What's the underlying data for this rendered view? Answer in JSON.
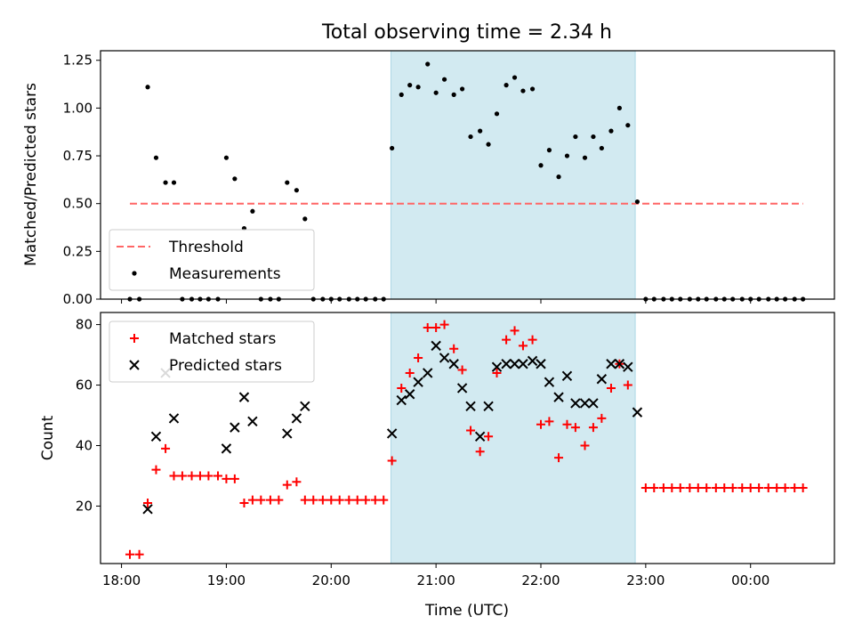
{
  "chart_data": {
    "title": "Total observing time = 2.34 h",
    "xlabel": "Time (UTC)",
    "x_unit": "hours (UTC), values >= 24 fall after midnight",
    "xlim": [
      17.8,
      24.8
    ],
    "xticks": [
      18,
      19,
      20,
      21,
      22,
      23,
      24
    ],
    "xtick_labels": [
      "18:00",
      "19:00",
      "20:00",
      "21:00",
      "22:00",
      "23:00",
      "00:00"
    ],
    "highlight_span": [
      20.57,
      22.9
    ],
    "highlight_color": "#add8e6",
    "panels": [
      {
        "type": "scatter",
        "ylabel": "Matched/Predicted stars",
        "ylim": [
          0,
          1.3
        ],
        "yticks": [
          0.0,
          0.25,
          0.5,
          0.75,
          1.0,
          1.25
        ],
        "ytick_labels": [
          "0.00",
          "0.25",
          "0.50",
          "0.75",
          "1.00",
          "1.25"
        ],
        "legend_position": "bottom-left",
        "threshold": {
          "name": "Threshold",
          "y": 0.5,
          "x_range": [
            18.08,
            24.5
          ],
          "color": "#ff6666"
        },
        "series": [
          {
            "name": "Measurements",
            "marker": "dot",
            "color": "#000000",
            "points": [
              [
                18.08,
                0
              ],
              [
                18.17,
                0
              ],
              [
                18.25,
                1.11
              ],
              [
                18.33,
                0.74
              ],
              [
                18.42,
                0.61
              ],
              [
                18.5,
                0.61
              ],
              [
                18.58,
                0
              ],
              [
                18.67,
                0
              ],
              [
                18.75,
                0
              ],
              [
                18.83,
                0
              ],
              [
                18.92,
                0
              ],
              [
                19.0,
                0.74
              ],
              [
                19.08,
                0.63
              ],
              [
                19.17,
                0.37
              ],
              [
                19.25,
                0.46
              ],
              [
                19.33,
                0
              ],
              [
                19.42,
                0
              ],
              [
                19.5,
                0
              ],
              [
                19.58,
                0.61
              ],
              [
                19.67,
                0.57
              ],
              [
                19.75,
                0.42
              ],
              [
                19.83,
                0
              ],
              [
                19.92,
                0
              ],
              [
                20.0,
                0
              ],
              [
                20.08,
                0
              ],
              [
                20.17,
                0
              ],
              [
                20.25,
                0
              ],
              [
                20.33,
                0
              ],
              [
                20.42,
                0
              ],
              [
                20.5,
                0
              ],
              [
                20.58,
                0.79
              ],
              [
                20.67,
                1.07
              ],
              [
                20.75,
                1.12
              ],
              [
                20.83,
                1.11
              ],
              [
                20.92,
                1.23
              ],
              [
                21.0,
                1.08
              ],
              [
                21.08,
                1.15
              ],
              [
                21.17,
                1.07
              ],
              [
                21.25,
                1.1
              ],
              [
                21.33,
                0.85
              ],
              [
                21.42,
                0.88
              ],
              [
                21.5,
                0.81
              ],
              [
                21.58,
                0.97
              ],
              [
                21.67,
                1.12
              ],
              [
                21.75,
                1.16
              ],
              [
                21.83,
                1.09
              ],
              [
                21.92,
                1.1
              ],
              [
                22.0,
                0.7
              ],
              [
                22.08,
                0.78
              ],
              [
                22.17,
                0.64
              ],
              [
                22.25,
                0.75
              ],
              [
                22.33,
                0.85
              ],
              [
                22.42,
                0.74
              ],
              [
                22.5,
                0.85
              ],
              [
                22.58,
                0.79
              ],
              [
                22.67,
                0.88
              ],
              [
                22.75,
                1.0
              ],
              [
                22.83,
                0.91
              ],
              [
                22.92,
                0.51
              ],
              [
                23.0,
                0
              ],
              [
                23.08,
                0
              ],
              [
                23.17,
                0
              ],
              [
                23.25,
                0
              ],
              [
                23.33,
                0
              ],
              [
                23.42,
                0
              ],
              [
                23.5,
                0
              ],
              [
                23.58,
                0
              ],
              [
                23.67,
                0
              ],
              [
                23.75,
                0
              ],
              [
                23.83,
                0
              ],
              [
                23.92,
                0
              ],
              [
                24.0,
                0
              ],
              [
                24.08,
                0
              ],
              [
                24.17,
                0
              ],
              [
                24.25,
                0
              ],
              [
                24.33,
                0
              ],
              [
                24.42,
                0
              ],
              [
                24.5,
                0
              ]
            ]
          }
        ]
      },
      {
        "type": "scatter",
        "ylabel": "Count",
        "ylim": [
          1,
          84
        ],
        "yticks": [
          20,
          40,
          60,
          80
        ],
        "ytick_labels": [
          "20",
          "40",
          "60",
          "80"
        ],
        "legend_position": "top-left",
        "series": [
          {
            "name": "Matched stars",
            "marker": "plus",
            "color": "#ff0000",
            "points": [
              [
                18.08,
                4
              ],
              [
                18.17,
                4
              ],
              [
                18.25,
                21
              ],
              [
                18.33,
                32
              ],
              [
                18.42,
                39
              ],
              [
                18.5,
                30
              ],
              [
                18.58,
                30
              ],
              [
                18.67,
                30
              ],
              [
                18.75,
                30
              ],
              [
                18.83,
                30
              ],
              [
                18.92,
                30
              ],
              [
                19.0,
                29
              ],
              [
                19.08,
                29
              ],
              [
                19.17,
                21
              ],
              [
                19.25,
                22
              ],
              [
                19.33,
                22
              ],
              [
                19.42,
                22
              ],
              [
                19.5,
                22
              ],
              [
                19.58,
                27
              ],
              [
                19.67,
                28
              ],
              [
                19.75,
                22
              ],
              [
                19.83,
                22
              ],
              [
                19.92,
                22
              ],
              [
                20.0,
                22
              ],
              [
                20.08,
                22
              ],
              [
                20.17,
                22
              ],
              [
                20.25,
                22
              ],
              [
                20.33,
                22
              ],
              [
                20.42,
                22
              ],
              [
                20.5,
                22
              ],
              [
                20.58,
                35
              ],
              [
                20.67,
                59
              ],
              [
                20.75,
                64
              ],
              [
                20.83,
                69
              ],
              [
                20.92,
                79
              ],
              [
                21.0,
                79
              ],
              [
                21.08,
                80
              ],
              [
                21.17,
                72
              ],
              [
                21.25,
                65
              ],
              [
                21.33,
                45
              ],
              [
                21.42,
                38
              ],
              [
                21.5,
                43
              ],
              [
                21.58,
                64
              ],
              [
                21.67,
                75
              ],
              [
                21.75,
                78
              ],
              [
                21.83,
                73
              ],
              [
                21.92,
                75
              ],
              [
                22.0,
                47
              ],
              [
                22.08,
                48
              ],
              [
                22.17,
                36
              ],
              [
                22.25,
                47
              ],
              [
                22.33,
                46
              ],
              [
                22.42,
                40
              ],
              [
                22.5,
                46
              ],
              [
                22.58,
                49
              ],
              [
                22.67,
                59
              ],
              [
                22.75,
                67
              ],
              [
                22.83,
                60
              ],
              [
                23.0,
                26
              ],
              [
                23.08,
                26
              ],
              [
                23.17,
                26
              ],
              [
                23.25,
                26
              ],
              [
                23.33,
                26
              ],
              [
                23.42,
                26
              ],
              [
                23.5,
                26
              ],
              [
                23.58,
                26
              ],
              [
                23.67,
                26
              ],
              [
                23.75,
                26
              ],
              [
                23.83,
                26
              ],
              [
                23.92,
                26
              ],
              [
                24.0,
                26
              ],
              [
                24.08,
                26
              ],
              [
                24.17,
                26
              ],
              [
                24.25,
                26
              ],
              [
                24.33,
                26
              ],
              [
                24.42,
                26
              ],
              [
                24.5,
                26
              ]
            ]
          },
          {
            "name": "Predicted stars",
            "marker": "x",
            "color": "#000000",
            "points": [
              [
                18.25,
                19
              ],
              [
                18.33,
                43
              ],
              [
                18.42,
                64
              ],
              [
                18.5,
                49
              ],
              [
                19.0,
                39
              ],
              [
                19.08,
                46
              ],
              [
                19.17,
                56
              ],
              [
                19.25,
                48
              ],
              [
                19.58,
                44
              ],
              [
                19.67,
                49
              ],
              [
                19.75,
                53
              ],
              [
                20.58,
                44
              ],
              [
                20.67,
                55
              ],
              [
                20.75,
                57
              ],
              [
                20.83,
                61
              ],
              [
                20.92,
                64
              ],
              [
                21.0,
                73
              ],
              [
                21.08,
                69
              ],
              [
                21.17,
                67
              ],
              [
                21.25,
                59
              ],
              [
                21.33,
                53
              ],
              [
                21.42,
                43
              ],
              [
                21.5,
                53
              ],
              [
                21.58,
                66
              ],
              [
                21.67,
                67
              ],
              [
                21.75,
                67
              ],
              [
                21.83,
                67
              ],
              [
                21.92,
                68
              ],
              [
                22.0,
                67
              ],
              [
                22.08,
                61
              ],
              [
                22.17,
                56
              ],
              [
                22.25,
                63
              ],
              [
                22.33,
                54
              ],
              [
                22.42,
                54
              ],
              [
                22.5,
                54
              ],
              [
                22.58,
                62
              ],
              [
                22.67,
                67
              ],
              [
                22.75,
                67
              ],
              [
                22.83,
                66
              ],
              [
                22.92,
                51
              ]
            ]
          }
        ]
      }
    ]
  }
}
